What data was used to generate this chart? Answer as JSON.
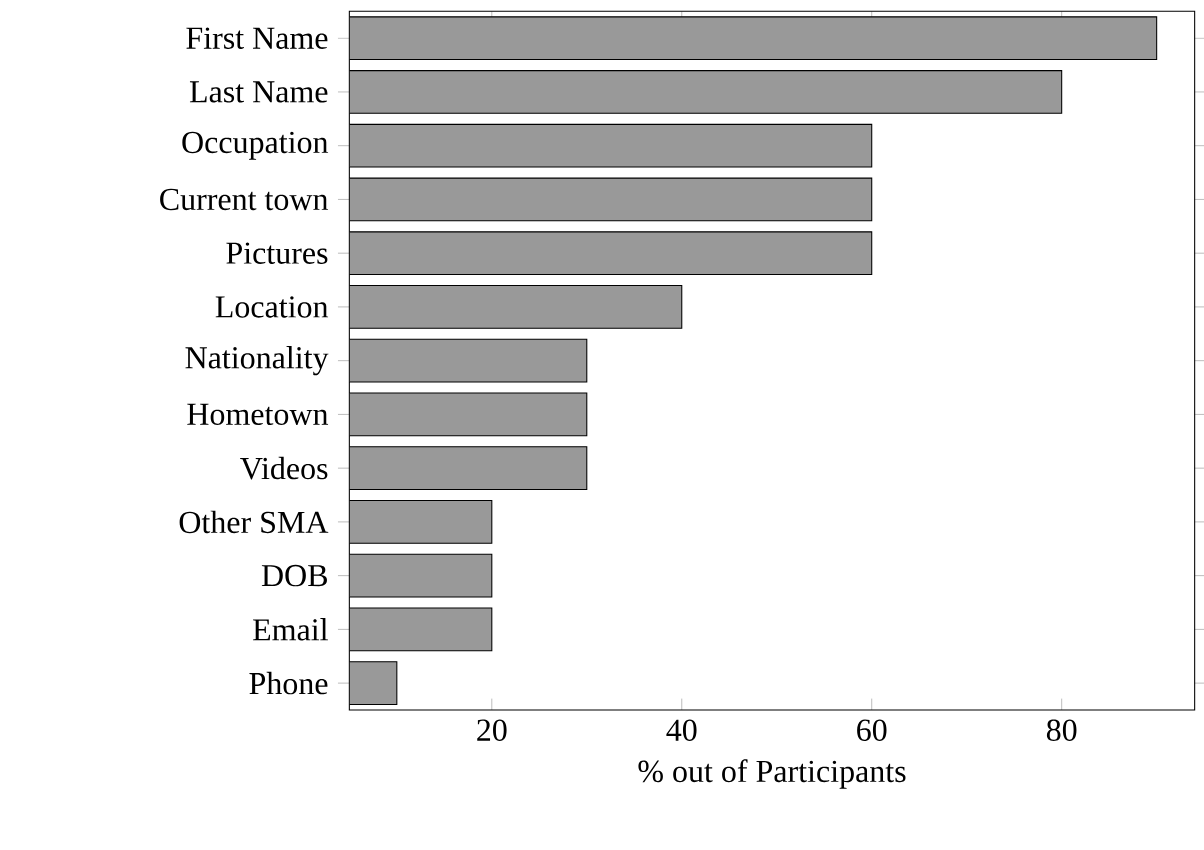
{
  "chart_data": {
    "type": "bar",
    "orientation": "horizontal",
    "xlabel": "% out of Participants",
    "categories": [
      "First Name",
      "Last Name",
      "Occupation",
      "Current town",
      "Pictures",
      "Location",
      "Nationality",
      "Hometown",
      "Videos",
      "Other SMA",
      "DOB",
      "Email",
      "Phone"
    ],
    "values": [
      90,
      80,
      60,
      60,
      60,
      40,
      30,
      30,
      30,
      20,
      20,
      20,
      10
    ],
    "color": "#999999",
    "xlim": [
      5,
      94
    ],
    "xticks": [
      20,
      40,
      60,
      80
    ]
  }
}
